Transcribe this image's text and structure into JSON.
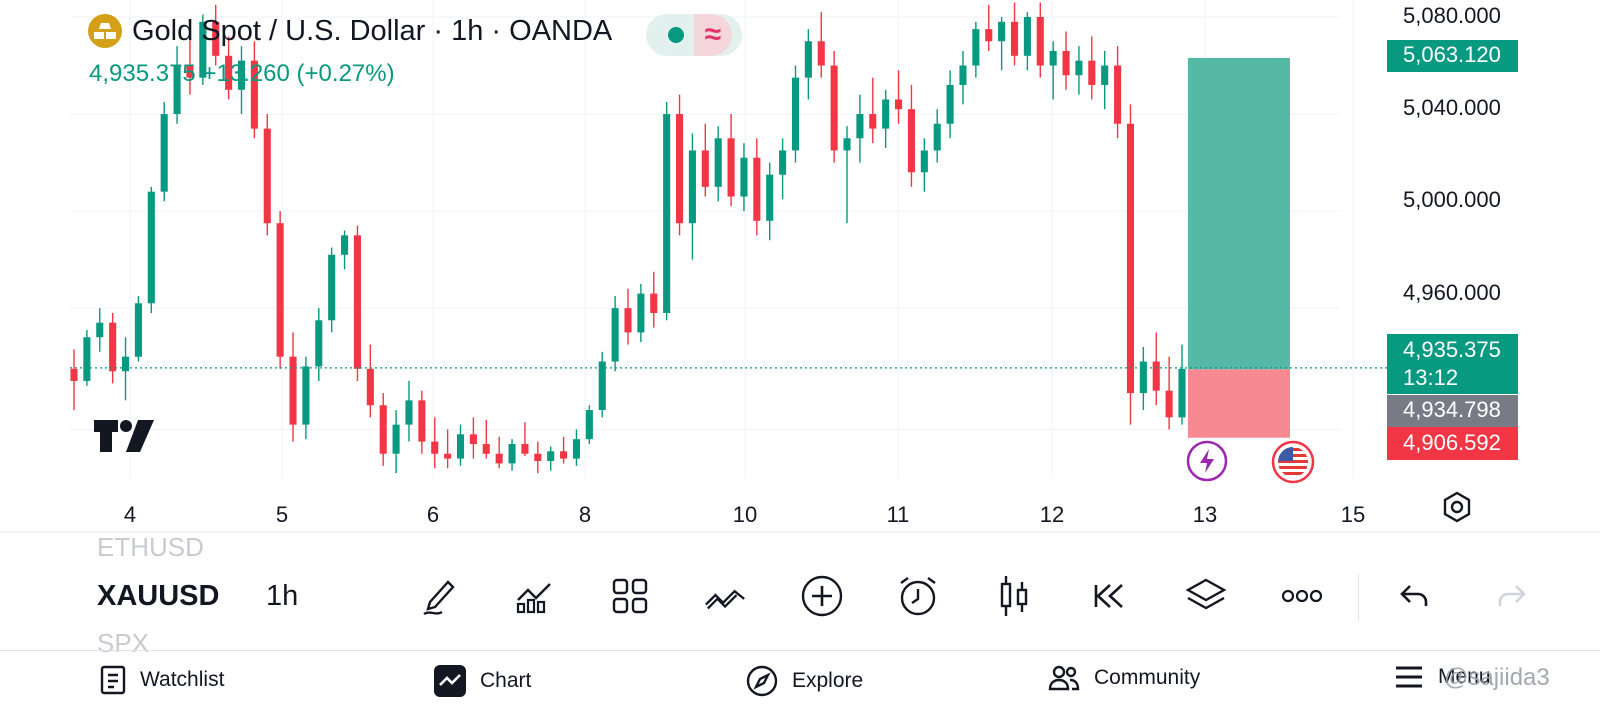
{
  "header": {
    "title": "Gold Spot / U.S. Dollar · 1h · OANDA",
    "last_price": "4,935.375",
    "change": "+13.260 (+0.27%)"
  },
  "price_tags": {
    "target": "5,063.120",
    "current": "4,935.375",
    "countdown": "13:12",
    "entry": "4,934.798",
    "stop": "4,906.592"
  },
  "colors": {
    "up": "#089981",
    "down": "#f23645",
    "profit_zone": "#4cb5a1",
    "loss_zone": "#f7838d",
    "entry_tag": "#787b86"
  },
  "chart_data": {
    "type": "candlestick",
    "ylim": [
      4890,
      5087
    ],
    "y_ticks": [
      "5,080.000",
      "5,040.000",
      "5,000.000",
      "4,960.000"
    ],
    "y_tick_values": [
      5080,
      5040,
      5000,
      4960
    ],
    "x_ticks": [
      "4",
      "5",
      "6",
      "8",
      "10",
      "11",
      "12",
      "13",
      "15"
    ],
    "current_price": 4935.375,
    "candles": [
      {
        "o": 4935,
        "h": 4943,
        "l": 4918,
        "c": 4930
      },
      {
        "o": 4930,
        "h": 4951,
        "l": 4928,
        "c": 4948
      },
      {
        "o": 4948,
        "h": 4960,
        "l": 4942,
        "c": 4954
      },
      {
        "o": 4954,
        "h": 4958,
        "l": 4929,
        "c": 4934
      },
      {
        "o": 4934,
        "h": 4948,
        "l": 4922,
        "c": 4940
      },
      {
        "o": 4940,
        "h": 4965,
        "l": 4938,
        "c": 4962
      },
      {
        "o": 4962,
        "h": 5010,
        "l": 4958,
        "c": 5008
      },
      {
        "o": 5008,
        "h": 5045,
        "l": 5004,
        "c": 5040
      },
      {
        "o": 5040,
        "h": 5068,
        "l": 5036,
        "c": 5060
      },
      {
        "o": 5060,
        "h": 5075,
        "l": 5048,
        "c": 5055
      },
      {
        "o": 5055,
        "h": 5081,
        "l": 5052,
        "c": 5078
      },
      {
        "o": 5078,
        "h": 5085,
        "l": 5060,
        "c": 5064
      },
      {
        "o": 5064,
        "h": 5072,
        "l": 5046,
        "c": 5050
      },
      {
        "o": 5050,
        "h": 5068,
        "l": 5040,
        "c": 5062
      },
      {
        "o": 5062,
        "h": 5070,
        "l": 5030,
        "c": 5034
      },
      {
        "o": 5034,
        "h": 5040,
        "l": 4990,
        "c": 4995
      },
      {
        "o": 4995,
        "h": 5000,
        "l": 4935,
        "c": 4940
      },
      {
        "o": 4940,
        "h": 4950,
        "l": 4905,
        "c": 4912
      },
      {
        "o": 4912,
        "h": 4940,
        "l": 4906,
        "c": 4936
      },
      {
        "o": 4936,
        "h": 4960,
        "l": 4930,
        "c": 4955
      },
      {
        "o": 4955,
        "h": 4985,
        "l": 4950,
        "c": 4982
      },
      {
        "o": 4982,
        "h": 4992,
        "l": 4976,
        "c": 4990
      },
      {
        "o": 4990,
        "h": 4994,
        "l": 4930,
        "c": 4935
      },
      {
        "o": 4935,
        "h": 4945,
        "l": 4915,
        "c": 4920
      },
      {
        "o": 4920,
        "h": 4925,
        "l": 4895,
        "c": 4900
      },
      {
        "o": 4900,
        "h": 4918,
        "l": 4892,
        "c": 4912
      },
      {
        "o": 4912,
        "h": 4930,
        "l": 4905,
        "c": 4922
      },
      {
        "o": 4922,
        "h": 4926,
        "l": 4900,
        "c": 4905
      },
      {
        "o": 4905,
        "h": 4915,
        "l": 4894,
        "c": 4900
      },
      {
        "o": 4900,
        "h": 4910,
        "l": 4894,
        "c": 4898
      },
      {
        "o": 4898,
        "h": 4912,
        "l": 4895,
        "c": 4908
      },
      {
        "o": 4908,
        "h": 4915,
        "l": 4898,
        "c": 4904
      },
      {
        "o": 4904,
        "h": 4914,
        "l": 4898,
        "c": 4900
      },
      {
        "o": 4900,
        "h": 4907,
        "l": 4894,
        "c": 4896
      },
      {
        "o": 4896,
        "h": 4906,
        "l": 4893,
        "c": 4904
      },
      {
        "o": 4904,
        "h": 4913,
        "l": 4899,
        "c": 4900
      },
      {
        "o": 4900,
        "h": 4905,
        "l": 4892,
        "c": 4897
      },
      {
        "o": 4897,
        "h": 4903,
        "l": 4893,
        "c": 4901
      },
      {
        "o": 4901,
        "h": 4907,
        "l": 4896,
        "c": 4898
      },
      {
        "o": 4898,
        "h": 4910,
        "l": 4895,
        "c": 4906
      },
      {
        "o": 4906,
        "h": 4920,
        "l": 4904,
        "c": 4918
      },
      {
        "o": 4918,
        "h": 4942,
        "l": 4915,
        "c": 4938
      },
      {
        "o": 4938,
        "h": 4965,
        "l": 4934,
        "c": 4960
      },
      {
        "o": 4960,
        "h": 4968,
        "l": 4945,
        "c": 4950
      },
      {
        "o": 4950,
        "h": 4970,
        "l": 4946,
        "c": 4966
      },
      {
        "o": 4966,
        "h": 4975,
        "l": 4952,
        "c": 4958
      },
      {
        "o": 4958,
        "h": 5045,
        "l": 4955,
        "c": 5040
      },
      {
        "o": 5040,
        "h": 5048,
        "l": 4990,
        "c": 4995
      },
      {
        "o": 4995,
        "h": 5032,
        "l": 4980,
        "c": 5025
      },
      {
        "o": 5025,
        "h": 5036,
        "l": 5006,
        "c": 5010
      },
      {
        "o": 5010,
        "h": 5035,
        "l": 5004,
        "c": 5030
      },
      {
        "o": 5030,
        "h": 5040,
        "l": 5002,
        "c": 5006
      },
      {
        "o": 5006,
        "h": 5028,
        "l": 5000,
        "c": 5022
      },
      {
        "o": 5022,
        "h": 5030,
        "l": 4990,
        "c": 4996
      },
      {
        "o": 4996,
        "h": 5020,
        "l": 4988,
        "c": 5015
      },
      {
        "o": 5015,
        "h": 5030,
        "l": 5005,
        "c": 5025
      },
      {
        "o": 5025,
        "h": 5060,
        "l": 5020,
        "c": 5055
      },
      {
        "o": 5055,
        "h": 5075,
        "l": 5046,
        "c": 5070
      },
      {
        "o": 5070,
        "h": 5082,
        "l": 5055,
        "c": 5060
      },
      {
        "o": 5060,
        "h": 5066,
        "l": 5020,
        "c": 5025
      },
      {
        "o": 5025,
        "h": 5035,
        "l": 4995,
        "c": 5030
      },
      {
        "o": 5030,
        "h": 5048,
        "l": 5020,
        "c": 5040
      },
      {
        "o": 5040,
        "h": 5055,
        "l": 5028,
        "c": 5034
      },
      {
        "o": 5034,
        "h": 5050,
        "l": 5026,
        "c": 5046
      },
      {
        "o": 5046,
        "h": 5058,
        "l": 5036,
        "c": 5042
      },
      {
        "o": 5042,
        "h": 5052,
        "l": 5010,
        "c": 5016
      },
      {
        "o": 5016,
        "h": 5030,
        "l": 5008,
        "c": 5025
      },
      {
        "o": 5025,
        "h": 5042,
        "l": 5020,
        "c": 5036
      },
      {
        "o": 5036,
        "h": 5058,
        "l": 5030,
        "c": 5052
      },
      {
        "o": 5052,
        "h": 5066,
        "l": 5044,
        "c": 5060
      },
      {
        "o": 5060,
        "h": 5078,
        "l": 5055,
        "c": 5075
      },
      {
        "o": 5075,
        "h": 5085,
        "l": 5066,
        "c": 5070
      },
      {
        "o": 5070,
        "h": 5080,
        "l": 5058,
        "c": 5078
      },
      {
        "o": 5078,
        "h": 5086,
        "l": 5060,
        "c": 5064
      },
      {
        "o": 5064,
        "h": 5082,
        "l": 5058,
        "c": 5080
      },
      {
        "o": 5080,
        "h": 5086,
        "l": 5055,
        "c": 5060
      },
      {
        "o": 5060,
        "h": 5070,
        "l": 5046,
        "c": 5066
      },
      {
        "o": 5066,
        "h": 5074,
        "l": 5050,
        "c": 5056
      },
      {
        "o": 5056,
        "h": 5068,
        "l": 5048,
        "c": 5062
      },
      {
        "o": 5062,
        "h": 5072,
        "l": 5046,
        "c": 5052
      },
      {
        "o": 5052,
        "h": 5066,
        "l": 5042,
        "c": 5060
      },
      {
        "o": 5060,
        "h": 5068,
        "l": 5030,
        "c": 5036
      },
      {
        "o": 5036,
        "h": 5044,
        "l": 4912,
        "c": 4925
      },
      {
        "o": 4925,
        "h": 4944,
        "l": 4918,
        "c": 4938
      },
      {
        "o": 4938,
        "h": 4950,
        "l": 4920,
        "c": 4926
      },
      {
        "o": 4926,
        "h": 4940,
        "l": 4910,
        "c": 4915
      },
      {
        "o": 4915,
        "h": 4945,
        "l": 4912,
        "c": 4935
      }
    ]
  },
  "toolbar": {
    "ghost_prev": "ETHUSD",
    "symbol": "XAUUSD",
    "ghost_next": "SPX",
    "timeframe": "1h"
  },
  "nav": {
    "watchlist": "Watchlist",
    "chart": "Chart",
    "explore": "Explore",
    "community": "Community",
    "menu": "Menu"
  },
  "watermark": "@sajiida3"
}
